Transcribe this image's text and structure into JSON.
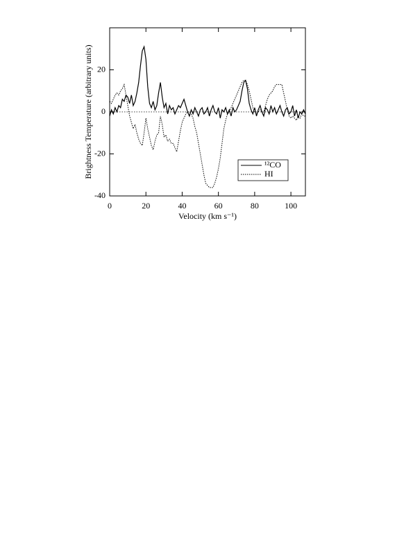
{
  "chart_data": {
    "type": "line",
    "xlabel": "Velocity (km s⁻¹)",
    "ylabel": "Brightness Temperature (arbitrary units)",
    "xlim": [
      0,
      108
    ],
    "xticks": [
      0,
      20,
      40,
      60,
      80,
      100
    ],
    "ylim": [
      -40,
      40
    ],
    "yticks": [
      -40,
      -20,
      0,
      20
    ],
    "legend": "lower right",
    "x": [
      0,
      1,
      2,
      3,
      4,
      5,
      6,
      7,
      8,
      9,
      10,
      11,
      12,
      13,
      14,
      15,
      16,
      17,
      18,
      19,
      20,
      21,
      22,
      23,
      24,
      25,
      26,
      27,
      28,
      29,
      30,
      31,
      32,
      33,
      34,
      35,
      36,
      37,
      38,
      39,
      40,
      41,
      42,
      43,
      44,
      45,
      46,
      47,
      48,
      49,
      50,
      51,
      52,
      53,
      54,
      55,
      56,
      57,
      58,
      59,
      60,
      61,
      62,
      63,
      64,
      65,
      66,
      67,
      68,
      69,
      70,
      71,
      72,
      73,
      74,
      75,
      76,
      77,
      78,
      79,
      80,
      81,
      82,
      83,
      84,
      85,
      86,
      87,
      88,
      89,
      90,
      91,
      92,
      93,
      94,
      95,
      96,
      97,
      98,
      99,
      100,
      101,
      102,
      103,
      104,
      105,
      106,
      107,
      108
    ],
    "series": [
      {
        "name": "¹²CO",
        "color": "#000000",
        "style": "solid",
        "values": [
          -2,
          1,
          -1,
          2,
          0,
          3,
          2,
          6,
          5,
          8,
          7,
          4,
          8,
          3,
          5,
          9,
          14,
          22,
          29,
          31,
          25,
          12,
          4,
          2,
          5,
          1,
          3,
          9,
          14,
          7,
          2,
          4,
          -1,
          3,
          1,
          2,
          -1,
          1,
          3,
          2,
          4,
          6,
          3,
          0,
          -2,
          1,
          -1,
          2,
          0,
          -2,
          1,
          2,
          -1,
          0,
          2,
          -2,
          1,
          3,
          0,
          -1,
          2,
          -3,
          1,
          0,
          2,
          -1,
          1,
          -2,
          2,
          0,
          1,
          3,
          5,
          10,
          14,
          15,
          11,
          4,
          1,
          -1,
          2,
          -2,
          1,
          3,
          0,
          -2,
          2,
          1,
          -1,
          3,
          0,
          2,
          -1,
          1,
          3,
          0,
          -2,
          1,
          2,
          -1,
          0,
          3,
          -2,
          1,
          -3,
          0,
          -1,
          1,
          -1
        ]
      },
      {
        "name": "HI",
        "color": "#000000",
        "style": "dotted",
        "values": [
          5,
          4,
          6,
          8,
          9,
          8,
          10,
          11,
          13,
          8,
          3,
          -2,
          -5,
          -8,
          -6,
          -10,
          -13,
          -15,
          -16,
          -10,
          -3,
          -8,
          -12,
          -16,
          -18,
          -14,
          -11,
          -10,
          -2,
          -6,
          -12,
          -11,
          -14,
          -13,
          -15,
          -15,
          -17,
          -19,
          -14,
          -9,
          -5,
          -3,
          -1,
          0,
          0,
          -1,
          -3,
          -7,
          -10,
          -15,
          -20,
          -25,
          -30,
          -34,
          -35,
          -36,
          -36,
          -36,
          -34,
          -31,
          -27,
          -22,
          -15,
          -8,
          -4,
          -1,
          0,
          2,
          4,
          6,
          8,
          10,
          12,
          14,
          15,
          15,
          13,
          10,
          6,
          2,
          0,
          -1,
          0,
          1,
          0,
          0,
          3,
          6,
          8,
          9,
          10,
          12,
          13,
          13,
          13,
          13,
          9,
          5,
          1,
          -2,
          -3,
          -2,
          -3,
          -4,
          -2,
          -3,
          -1,
          -2,
          -2
        ]
      }
    ]
  }
}
